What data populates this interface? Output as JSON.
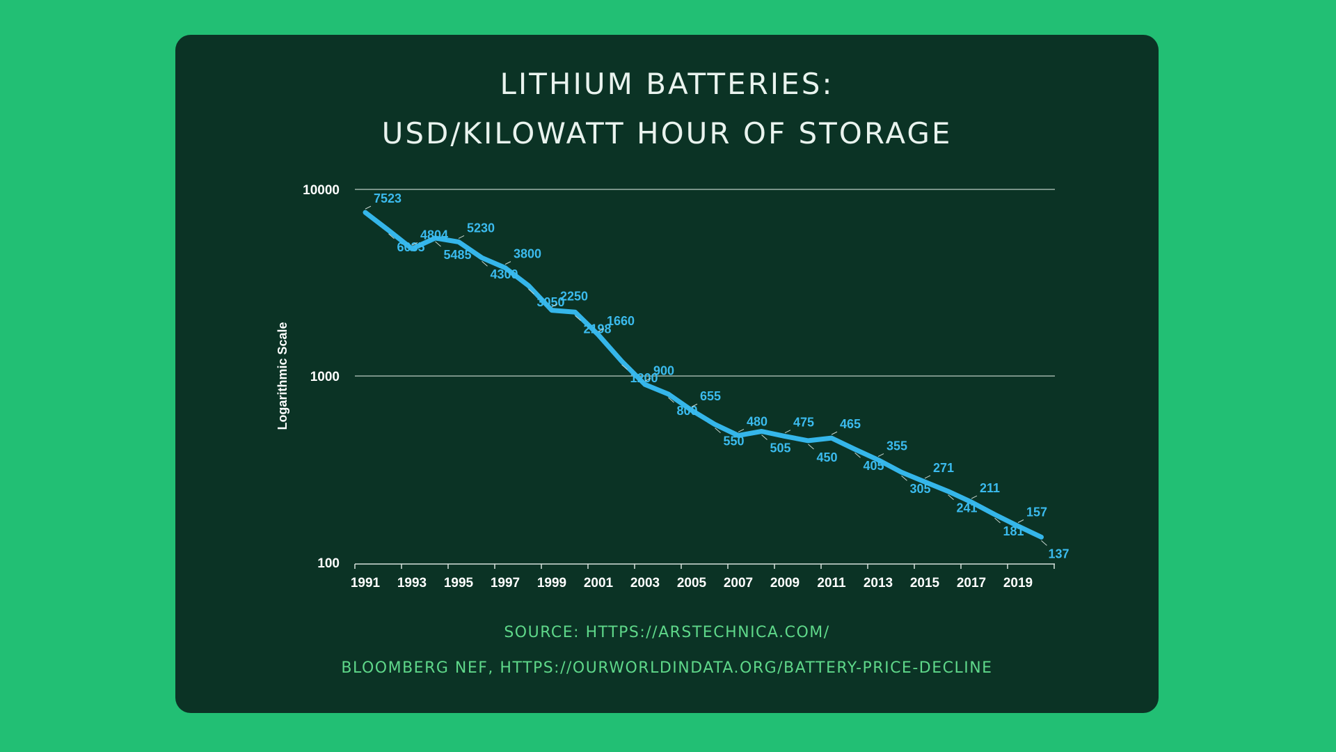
{
  "colors": {
    "background": "#22bf74",
    "card": "#0b3325",
    "line": "#35b6ea",
    "label": "#3bbbee",
    "source": "#5fd88a",
    "title": "#e9f3ee"
  },
  "title_lines": [
    "LITHIUM BATTERIES:",
    "USD/KILOWATT HOUR OF STORAGE"
  ],
  "source_lines": [
    "SOURCE: HTTPS://ARSTECHNICA.COM/",
    "BLOOMBERG NEF, HTTPS://OURWORLDINDATA.ORG/BATTERY-PRICE-DECLINE"
  ],
  "chart_data": {
    "type": "line",
    "title": "LITHIUM BATTERIES: USD/KILOWATT HOUR OF STORAGE",
    "xlabel": "",
    "ylabel": "Logarithmic Scale",
    "yscale": "log",
    "ylim": [
      100,
      10000
    ],
    "xlim": [
      1991,
      2021
    ],
    "grid": "horizontal",
    "y_ticks": [
      100,
      1000,
      10000
    ],
    "y_tick_labels": [
      "100",
      "1000",
      "10000"
    ],
    "x_tick_labels": [
      "1991",
      "1993",
      "1995",
      "1997",
      "1999",
      "2001",
      "2003",
      "2005",
      "2007",
      "2009",
      "2011",
      "2013",
      "2015",
      "2017",
      "2019"
    ],
    "x": [
      1991,
      1992,
      1993,
      1994,
      1995,
      1996,
      1997,
      1998,
      1999,
      2000,
      2001,
      2002,
      2003,
      2004,
      2005,
      2006,
      2007,
      2008,
      2009,
      2010,
      2011,
      2012,
      2013,
      2014,
      2015,
      2016,
      2017,
      2018,
      2019,
      2020
    ],
    "values": [
      7523,
      6035,
      4804,
      5485,
      5230,
      4300,
      3800,
      3050,
      2250,
      2198,
      1660,
      1200,
      900,
      800,
      655,
      550,
      480,
      505,
      475,
      450,
      465,
      405,
      355,
      305,
      271,
      241,
      211,
      181,
      157,
      137
    ],
    "data_labels": [
      "7523",
      "6035",
      "4804",
      "5485",
      "5230",
      "4300",
      "3800",
      "3050",
      "2250",
      "2198",
      "1660",
      "1200",
      "900",
      "800",
      "655",
      "550",
      "480",
      "505",
      "475",
      "450",
      "465",
      "405",
      "355",
      "305",
      "271",
      "241",
      "211",
      "181",
      "157",
      "137"
    ]
  }
}
